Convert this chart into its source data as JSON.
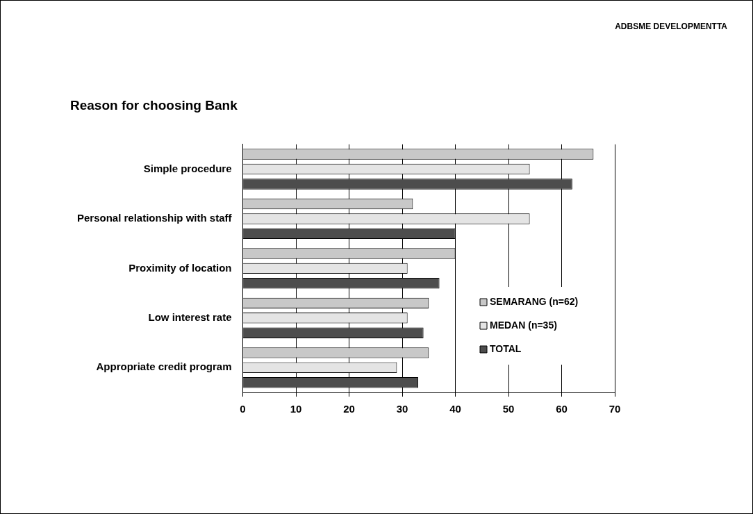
{
  "chart_data": {
    "type": "bar",
    "orientation": "horizontal",
    "title": "Reason for choosing Bank",
    "annotations": [
      "ADBSME DEVELOPMENTTA"
    ],
    "categories": [
      "Simple procedure",
      "Personal relationship with staff",
      "Proximity of location",
      "Low interest rate",
      "Appropriate credit program"
    ],
    "series": [
      {
        "name": "SEMARANG (n=62)",
        "color": "#c8c8c8",
        "values": [
          66,
          32,
          40,
          35,
          35
        ]
      },
      {
        "name": "MEDAN (n=35)",
        "color": "#e4e4e4",
        "values": [
          54,
          54,
          31,
          31,
          29
        ]
      },
      {
        "name": "TOTAL",
        "color": "#4d4d4d",
        "values": [
          62,
          40,
          37,
          34,
          33
        ]
      }
    ],
    "xlim": [
      0,
      70
    ],
    "xticks": [
      0,
      10,
      20,
      30,
      40,
      50,
      60,
      70
    ],
    "grid": "x",
    "legend": "bottom right"
  }
}
